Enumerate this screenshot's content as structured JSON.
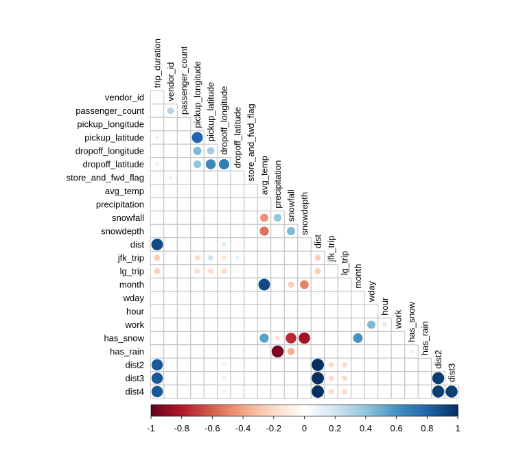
{
  "chart_data": {
    "type": "heatmap",
    "style": "corrplot lower triangle, circle glyphs (size and color by correlation)",
    "variables": [
      "trip_duration",
      "vendor_id",
      "passenger_count",
      "pickup_longitude",
      "pickup_latitude",
      "dropoff_longitude",
      "dropoff_latitude",
      "store_and_fwd_flag",
      "avg_temp",
      "precipitation",
      "snowfall",
      "snowdepth",
      "dist",
      "jfk_trip",
      "lg_trip",
      "month",
      "wday",
      "hour",
      "work",
      "has_snow",
      "has_rain",
      "dist2",
      "dist3",
      "dist4"
    ],
    "row_labels": [
      "vendor_id",
      "passenger_count",
      "pickup_longitude",
      "pickup_latitude",
      "dropoff_longitude",
      "dropoff_latitude",
      "store_and_fwd_flag",
      "avg_temp",
      "precipitation",
      "snowfall",
      "snowdepth",
      "dist",
      "jfk_trip",
      "lg_trip",
      "month",
      "wday",
      "hour",
      "work",
      "has_snow",
      "has_rain",
      "dist2",
      "dist3",
      "dist4"
    ],
    "column_labels": [
      "trip_duration",
      "vendor_id",
      "passenger_count",
      "pickup_longitude",
      "pickup_latitude",
      "dropoff_longitude",
      "dropoff_latitude",
      "store_and_fwd_flag",
      "avg_temp",
      "precipitation",
      "snowfall",
      "snowdepth",
      "dist",
      "jfk_trip",
      "lg_trip",
      "month",
      "wday",
      "hour",
      "work",
      "has_snow",
      "has_rain",
      "dist2",
      "dist3"
    ],
    "values": [
      [
        0.02
      ],
      [
        0.01,
        0.3
      ],
      [
        0.02,
        0.01,
        0.0
      ],
      [
        -0.1,
        0.0,
        0.01,
        0.8
      ],
      [
        0.05,
        0,
        0,
        0.45,
        0.35
      ],
      [
        -0.1,
        0,
        0,
        0.4,
        0.65,
        0.7
      ],
      [
        0.01,
        -0.1,
        0.01,
        0.01,
        0.01,
        0,
        0
      ],
      [
        0.02,
        0,
        0,
        0,
        0,
        0,
        0,
        0
      ],
      [
        0.01,
        0,
        0,
        0,
        0,
        0,
        0,
        0,
        0
      ],
      [
        0.01,
        0,
        0,
        0,
        0,
        0,
        0,
        0,
        -0.45,
        0.4
      ],
      [
        0.01,
        0,
        0,
        0,
        0,
        0,
        0,
        0,
        -0.55,
        0.05,
        0.45
      ],
      [
        0.9,
        0,
        0.01,
        0.05,
        -0.05,
        0.15,
        -0.05,
        0.01,
        0.01,
        0,
        0.01,
        0.01
      ],
      [
        -0.25,
        0.01,
        0.01,
        -0.2,
        0.2,
        -0.15,
        0.1,
        0.01,
        0.01,
        0,
        0.01,
        0.01,
        -0.25
      ],
      [
        -0.25,
        0,
        0,
        -0.2,
        -0.2,
        -0.2,
        -0.05,
        0.01,
        0.01,
        0,
        0,
        0,
        -0.25,
        0.01
      ],
      [
        0.03,
        0,
        0,
        0,
        0,
        0,
        0,
        0,
        0.9,
        0.01,
        -0.25,
        -0.5,
        0.01,
        0.01,
        0.01
      ],
      [
        0.01,
        0,
        0.03,
        -0.02,
        -0.03,
        0.01,
        0.01,
        0,
        0.01,
        -0.03,
        -0.03,
        0.01,
        0.01,
        0,
        0,
        0.01
      ],
      [
        0.01,
        0,
        0.01,
        0,
        0,
        0.02,
        0,
        0,
        0,
        0,
        0,
        0,
        0,
        0,
        0,
        0,
        -0.03
      ],
      [
        -0.05,
        0,
        0.01,
        -0.04,
        -0.05,
        0.01,
        -0.05,
        0,
        0.01,
        0,
        0,
        0,
        0.05,
        0,
        0.01,
        0,
        0.45,
        0.15
      ],
      [
        0.01,
        0,
        0,
        0,
        0,
        0,
        0,
        0,
        0.55,
        -0.15,
        -0.75,
        -0.85,
        0.01,
        0,
        0,
        0.6,
        0.03,
        0,
        0
      ],
      [
        0.01,
        0,
        0,
        0,
        0,
        0,
        0,
        0,
        0.01,
        -0.95,
        -0.35,
        -0.05,
        0,
        0,
        0,
        0.02,
        0,
        0,
        0,
        0.1
      ],
      [
        0.85,
        0,
        0.01,
        0.05,
        -0.05,
        0.1,
        -0.05,
        0.01,
        0.01,
        0,
        0,
        0,
        1.0,
        -0.2,
        -0.2,
        0.01,
        0.01,
        0.01,
        0.05,
        0.01,
        0
      ],
      [
        0.85,
        0,
        0.01,
        0.05,
        -0.05,
        0.1,
        -0.05,
        0.01,
        0.01,
        0,
        0,
        0,
        1.0,
        -0.2,
        -0.2,
        0.01,
        0.01,
        0.01,
        0.05,
        0.01,
        0,
        0.95
      ],
      [
        0.85,
        0,
        0.01,
        0.05,
        -0.05,
        0.1,
        -0.05,
        0.01,
        0.01,
        0,
        0,
        0,
        1.0,
        -0.2,
        -0.2,
        0.01,
        0.01,
        0.01,
        0.05,
        0.01,
        0,
        0.95,
        0.95
      ]
    ],
    "colorbar": {
      "range": [
        -1,
        1
      ],
      "tick_labels": [
        "-1",
        "-0.8",
        "-0.6",
        "-0.4",
        "-0.2",
        "0",
        "0.2",
        "0.4",
        "0.6",
        "0.8",
        "1"
      ],
      "palette": [
        "#67001F",
        "#B2182B",
        "#D6604D",
        "#F4A582",
        "#FDDBC7",
        "#FFFFFF",
        "#D1E5F0",
        "#92C5DE",
        "#4393C3",
        "#2166AC",
        "#053061"
      ]
    },
    "grid": true,
    "legend": "bottom"
  }
}
